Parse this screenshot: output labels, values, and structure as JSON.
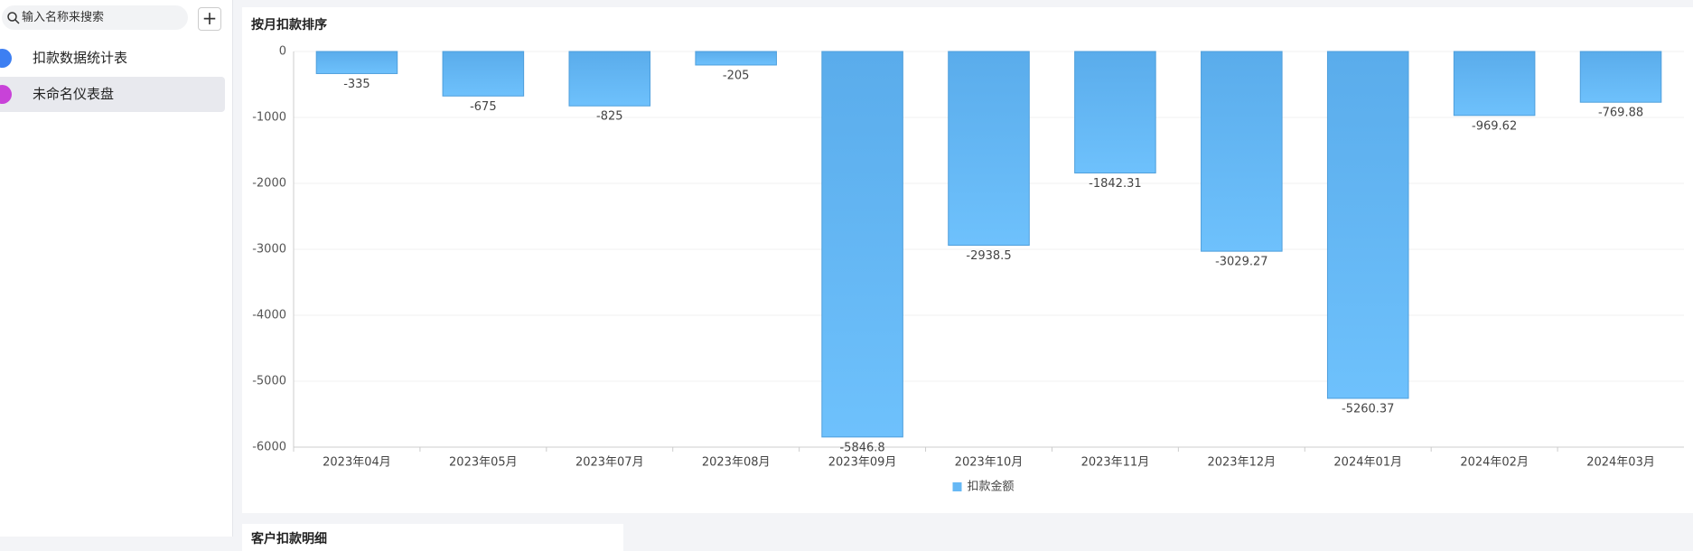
{
  "sidebar": {
    "search_placeholder": "输入名称来搜索",
    "items": [
      "扣款数据统计表",
      "未命名仪表盘"
    ]
  },
  "next_card_title": "客户扣款明细",
  "chart_data": {
    "type": "bar",
    "title": "按月扣款排序",
    "categories": [
      "2023年04月",
      "2023年05月",
      "2023年07月",
      "2023年08月",
      "2023年09月",
      "2023年10月",
      "2023年11月",
      "2023年12月",
      "2024年01月",
      "2024年02月",
      "2024年03月"
    ],
    "series": [
      {
        "name": "扣款金额",
        "color": "#66b8f5",
        "values": [
          -335,
          -675,
          -825,
          -205,
          -5846.8,
          -2938.5,
          -1842.31,
          -3029.27,
          -5260.37,
          -969.62,
          -769.88
        ]
      }
    ],
    "ylim": [
      -6000,
      0
    ],
    "yticks": [
      0,
      -1000,
      -2000,
      -3000,
      -4000,
      -5000,
      -6000
    ],
    "grid": true,
    "legend": "bottom"
  }
}
